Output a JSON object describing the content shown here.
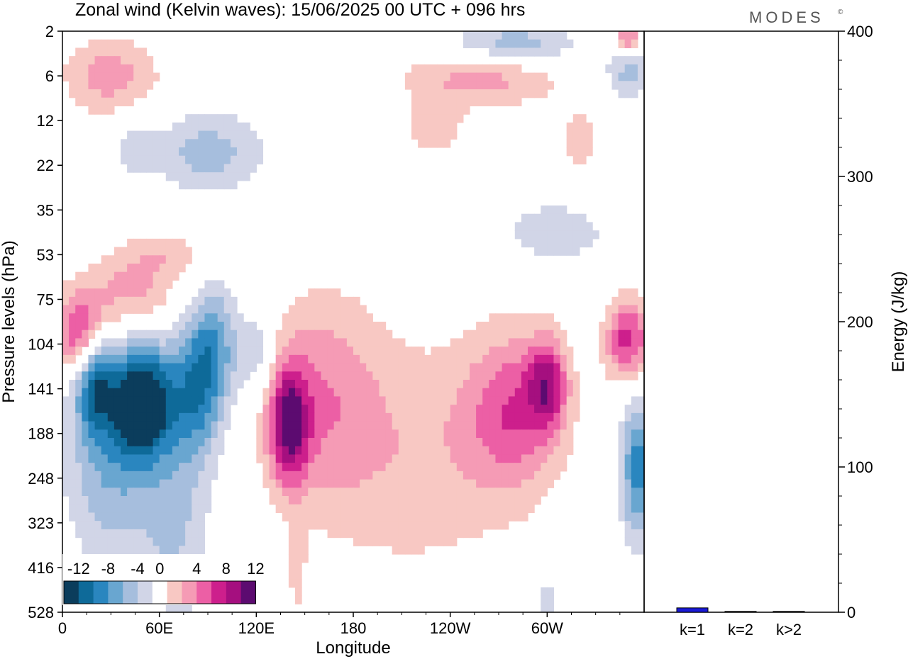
{
  "header": {
    "title": "Zonal wind (Kelvin waves):  15/06/2025  00 UTC  + 096 hrs",
    "brand": "MODES",
    "brand_mark": "©"
  },
  "colors": {
    "neg": [
      "#0b3d5c",
      "#0e6a99",
      "#2a86bf",
      "#69a6d0",
      "#a6bedd",
      "#d1d5e7"
    ],
    "pos": [
      "#f8c8c3",
      "#f59bb5",
      "#ec5fa5",
      "#cd1f8c",
      "#a50f7f",
      "#5c0b70"
    ],
    "bar": "#1a1ad6"
  },
  "chart_data": [
    {
      "type": "heatmap",
      "title": "Zonal wind (Kelvin waves):  15/06/2025  00 UTC  + 096 hrs",
      "xlabel": "Longitude",
      "ylabel": "Pressure levels (hPa)",
      "x_ticks": [
        "0",
        "60E",
        "120E",
        "180",
        "120W",
        "60W"
      ],
      "x_range_deg": [
        0,
        360
      ],
      "y_levels": [
        "2",
        "6",
        "12",
        "22",
        "35",
        "53",
        "75",
        "104",
        "141",
        "188",
        "248",
        "323",
        "416",
        "528"
      ],
      "colorbar": {
        "labels": [
          "-12",
          "-8",
          "-4",
          "0",
          "4",
          "8",
          "12"
        ],
        "bounds": [
          -14,
          -12,
          -10,
          -8,
          -6,
          -4,
          -2,
          2,
          4,
          6,
          8,
          10,
          12,
          14
        ]
      },
      "features": [
        {
          "lon": 50,
          "level_index": 8.3,
          "value": -14.5,
          "lon_half_width": 18,
          "level_half_width": 1.2
        },
        {
          "lon": 20,
          "level_index": 7.8,
          "value": -9,
          "lon_half_width": 12,
          "level_half_width": 1.2
        },
        {
          "lon": 30,
          "level_index": 9.5,
          "value": -6,
          "lon_half_width": 28,
          "level_half_width": 2.5
        },
        {
          "lon": 82,
          "level_index": 8.0,
          "value": -8,
          "lon_half_width": 16,
          "level_half_width": 1.6
        },
        {
          "lon": 95,
          "level_index": 7.0,
          "value": -6,
          "lon_half_width": 14,
          "level_half_width": 1.5
        },
        {
          "lon": 120,
          "level_index": 7.2,
          "value": -4,
          "lon_half_width": 12,
          "level_half_width": 1.0
        },
        {
          "lon": 70,
          "level_index": 11.0,
          "value": -4,
          "lon_half_width": 22,
          "level_half_width": 2.5
        },
        {
          "lon": 90,
          "level_index": 2.7,
          "value": -5,
          "lon_half_width": 35,
          "level_half_width": 0.9
        },
        {
          "lon": 45,
          "level_index": 2.6,
          "value": -3,
          "lon_half_width": 12,
          "level_half_width": 0.7
        },
        {
          "lon": 305,
          "level_index": 4.5,
          "value": -3,
          "lon_half_width": 40,
          "level_half_width": 0.9
        },
        {
          "lon": 278,
          "level_index": 0.3,
          "value": -6,
          "lon_half_width": 40,
          "level_half_width": 0.5
        },
        {
          "lon": 350,
          "level_index": 0.9,
          "value": -5,
          "lon_half_width": 14,
          "level_half_width": 0.6
        },
        {
          "lon": 356,
          "level_index": 9.8,
          "value": -9,
          "lon_half_width": 10,
          "level_half_width": 1.6
        },
        {
          "lon": 300,
          "level_index": 13.0,
          "value": -3,
          "lon_half_width": 8,
          "level_half_width": 1.2
        },
        {
          "lon": 12,
          "level_index": 6.8,
          "value": 10,
          "lon_half_width": 15,
          "level_half_width": 0.9
        },
        {
          "lon": 40,
          "level_index": 5.9,
          "value": 5,
          "lon_half_width": 30,
          "level_half_width": 0.9
        },
        {
          "lon": 65,
          "level_index": 5.0,
          "value": 3,
          "lon_half_width": 30,
          "level_half_width": 0.6
        },
        {
          "lon": 30,
          "level_index": 1.0,
          "value": 5,
          "lon_half_width": 30,
          "level_half_width": 0.9
        },
        {
          "lon": 140,
          "level_index": 8.8,
          "value": 11,
          "lon_half_width": 12,
          "level_half_width": 1.3
        },
        {
          "lon": 160,
          "level_index": 8.2,
          "value": 5,
          "lon_half_width": 35,
          "level_half_width": 2.4
        },
        {
          "lon": 220,
          "level_index": 9.5,
          "value": 3.5,
          "lon_half_width": 60,
          "level_half_width": 2.8
        },
        {
          "lon": 280,
          "level_index": 8.5,
          "value": 7,
          "lon_half_width": 30,
          "level_half_width": 1.8
        },
        {
          "lon": 300,
          "level_index": 7.9,
          "value": 8,
          "lon_half_width": 12,
          "level_half_width": 1.0
        },
        {
          "lon": 350,
          "level_index": 6.9,
          "value": 9,
          "lon_half_width": 14,
          "level_half_width": 0.9
        },
        {
          "lon": 260,
          "level_index": 1.0,
          "value": 5,
          "lon_half_width": 50,
          "level_half_width": 0.7
        },
        {
          "lon": 230,
          "level_index": 2.2,
          "value": 3,
          "lon_half_width": 20,
          "level_half_width": 0.7
        },
        {
          "lon": 320,
          "level_index": 2.5,
          "value": 3,
          "lon_half_width": 12,
          "level_half_width": 0.9
        },
        {
          "lon": 350,
          "level_index": 0.2,
          "value": 7,
          "lon_half_width": 8,
          "level_half_width": 0.4
        },
        {
          "lon": 145,
          "level_index": 12.0,
          "value": 3,
          "lon_half_width": 5,
          "level_half_width": 1.0
        },
        {
          "lon": 55,
          "level_index": 13.2,
          "value": 3,
          "lon_half_width": 6,
          "level_half_width": 0.8
        }
      ]
    },
    {
      "type": "bar",
      "categories": [
        "k=1",
        "k=2",
        "k>2"
      ],
      "values": [
        3,
        0.6,
        0.6
      ],
      "ylabel": "Energy (J/kg)",
      "ylim": [
        0,
        400
      ],
      "y_ticks": [
        "0",
        "100",
        "200",
        "300",
        "400"
      ]
    }
  ]
}
